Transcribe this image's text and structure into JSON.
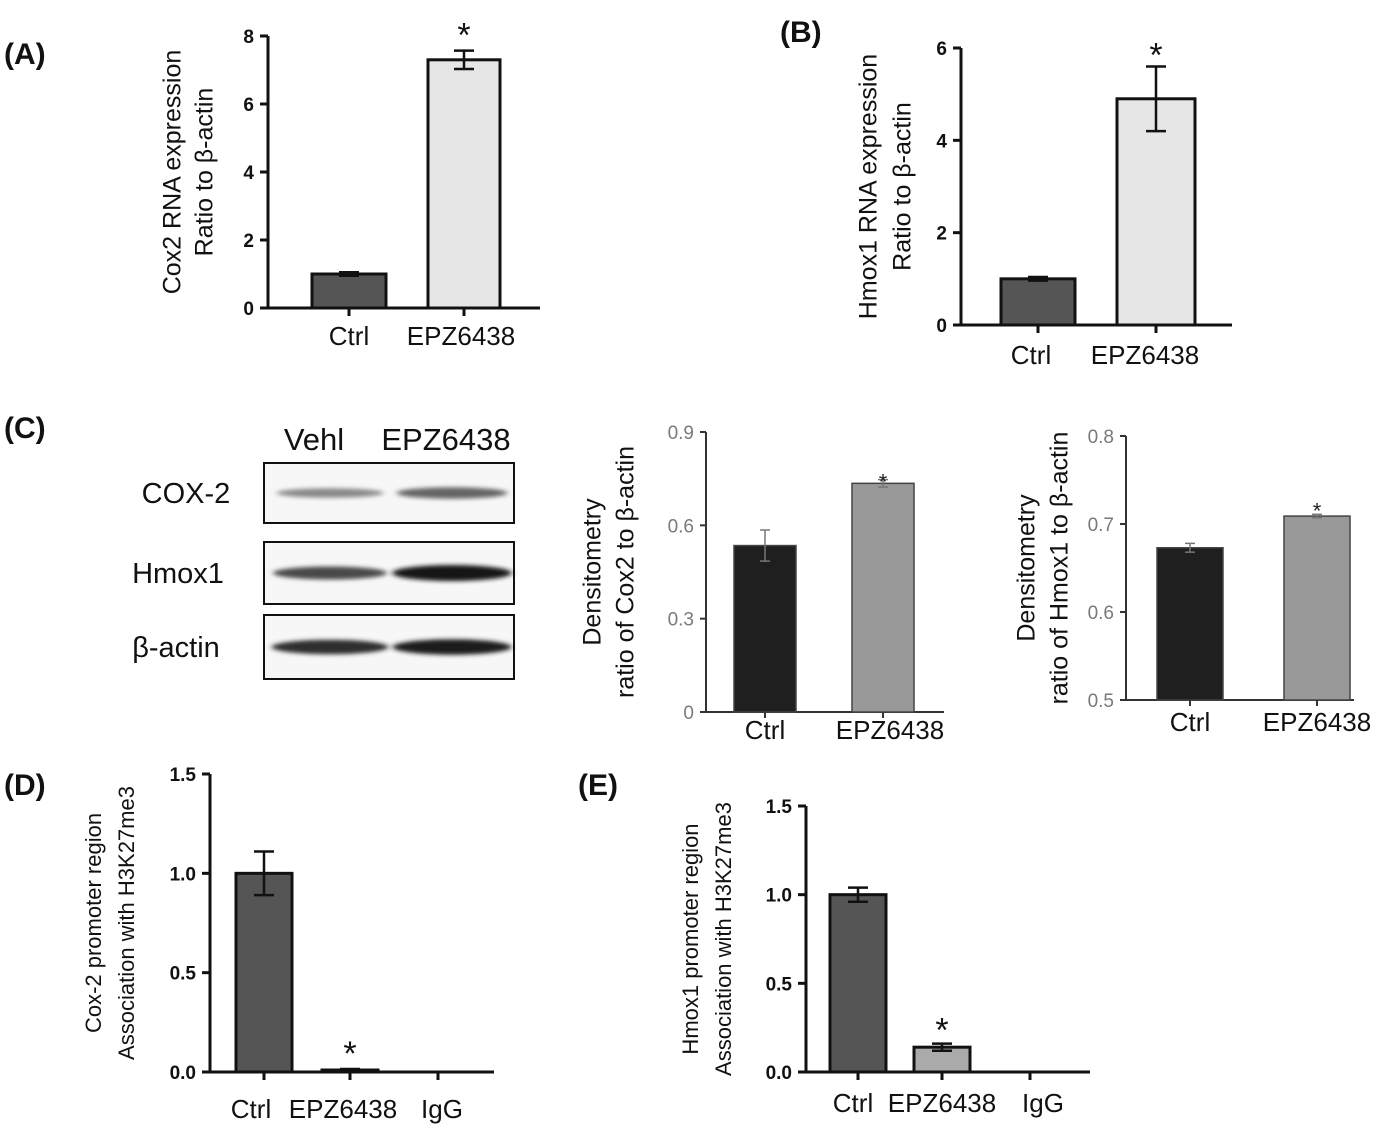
{
  "chart_data": [
    {
      "id": "A",
      "panel_label": "(A)",
      "type": "bar",
      "categories": [
        "Ctrl",
        "EPZ6438"
      ],
      "values": [
        1.0,
        7.3
      ],
      "errors": [
        0.05,
        0.27
      ],
      "bar_colors": [
        "#555555",
        "#e6e6e6"
      ],
      "significance": [
        "",
        "*"
      ],
      "ylabel": [
        "Cox2 RNA expression",
        "Ratio to β-actin"
      ],
      "ylim": [
        0,
        8
      ],
      "yticks": [
        "0",
        "2",
        "4",
        "6",
        "8"
      ]
    },
    {
      "id": "B",
      "panel_label": "(B)",
      "type": "bar",
      "categories": [
        "Ctrl",
        "EPZ6438"
      ],
      "values": [
        1.0,
        4.9
      ],
      "errors": [
        0.04,
        0.7
      ],
      "bar_colors": [
        "#555555",
        "#e6e6e6"
      ],
      "significance": [
        "",
        "*"
      ],
      "ylabel": [
        "Hmox1 RNA expression",
        "Ratio to β-actin"
      ],
      "ylim": [
        0,
        6
      ],
      "yticks": [
        "0",
        "2",
        "4",
        "6"
      ]
    },
    {
      "id": "C1",
      "panel_label": "(C)",
      "type": "bar",
      "categories": [
        "Ctrl",
        "EPZ6438"
      ],
      "values": [
        0.535,
        0.735
      ],
      "errors": [
        0.05,
        0.012
      ],
      "bar_colors": [
        "#1f1f1f",
        "#999999"
      ],
      "significance": [
        "",
        "*"
      ],
      "ylabel": [
        "Densitometry",
        "ratio of Cox2 to β-actin"
      ],
      "ylim": [
        0,
        0.9
      ],
      "yticks": [
        "0",
        "0.3",
        "0.6",
        "0.9"
      ]
    },
    {
      "id": "C2",
      "type": "bar",
      "categories": [
        "Ctrl",
        "EPZ6438"
      ],
      "values": [
        0.673,
        0.709
      ],
      "errors": [
        0.005,
        0.002
      ],
      "bar_colors": [
        "#1f1f1f",
        "#999999"
      ],
      "significance": [
        "",
        "*"
      ],
      "ylabel": [
        "Densitometry",
        "ratio of Hmox1 to β-actin"
      ],
      "ylim": [
        0.5,
        0.8
      ],
      "yticks": [
        "0.5",
        "0.6",
        "0.7",
        "0.8"
      ]
    },
    {
      "id": "D",
      "panel_label": "(D)",
      "type": "bar",
      "categories": [
        "Ctrl",
        "EPZ6438",
        "IgG"
      ],
      "values": [
        1.0,
        0.01,
        0.0
      ],
      "errors": [
        0.11,
        0.005,
        0
      ],
      "bar_colors": [
        "#555555",
        "#555555",
        "#555555"
      ],
      "significance": [
        "",
        "*",
        ""
      ],
      "ylabel": [
        "Cox-2 promoter region",
        "Association with H3K27me3"
      ],
      "ylim": [
        0,
        1.5
      ],
      "yticks": [
        "0.0",
        "0.5",
        "1.0",
        "1.5"
      ]
    },
    {
      "id": "E",
      "panel_label": "(E)",
      "type": "bar",
      "categories": [
        "Ctrl",
        "EPZ6438",
        "IgG"
      ],
      "values": [
        1.0,
        0.14,
        0.0
      ],
      "errors": [
        0.04,
        0.02,
        0
      ],
      "bar_colors": [
        "#555555",
        "#aaaaaa",
        "#555555"
      ],
      "significance": [
        "",
        "*",
        ""
      ],
      "ylabel": [
        "Hmox1 promoter region",
        "Association with H3K27me3"
      ],
      "ylim": [
        0,
        1.5
      ],
      "yticks": [
        "0.0",
        "0.5",
        "1.0",
        "1.5"
      ]
    }
  ],
  "blot": {
    "columns": [
      "Vehl",
      "EPZ6438"
    ],
    "rows": [
      {
        "label": "COX-2",
        "intensity": [
          0.35,
          0.55
        ]
      },
      {
        "label": "Hmox1",
        "intensity": [
          0.7,
          1.0
        ]
      },
      {
        "label": "β-actin",
        "intensity": [
          0.85,
          0.95
        ]
      }
    ]
  }
}
